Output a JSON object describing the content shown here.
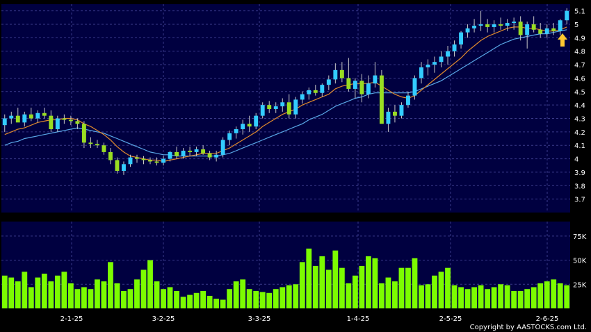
{
  "copyright": "Copyright by AASTOCKS.com Ltd.",
  "colors": {
    "background": "#000040",
    "grid": "#3a3a8a",
    "up_candle": "#33ccff",
    "down_candle": "#99dd22",
    "ma_short": "#e08a2c",
    "ma_long": "#5aa8e8",
    "volume": "#7cfc00",
    "arrow": "#ffc830"
  },
  "chart_data": {
    "type": "candlestick",
    "price_axis": {
      "ylim": [
        3.6,
        5.15
      ],
      "ticks": [
        "3.7",
        "3.8",
        "3.9",
        "4",
        "4.1",
        "4.2",
        "4.3",
        "4.4",
        "4.5",
        "4.6",
        "4.7",
        "4.8",
        "4.9",
        "5",
        "5.1"
      ]
    },
    "volume_axis": {
      "ylim": [
        0,
        90000
      ],
      "ticks": [
        "25K",
        "50K",
        "75K"
      ]
    },
    "x_axis": {
      "labels": [
        "2-1-25",
        "3-2-25",
        "3-3-25",
        "1-4-25",
        "2-5-25",
        "2-6-25"
      ]
    },
    "series": [
      {
        "name": "",
        "values": [
          [
            4.25,
            4.33,
            4.2,
            4.3
          ],
          [
            4.3,
            4.35,
            4.26,
            4.32
          ],
          [
            4.32,
            4.38,
            4.28,
            4.27
          ],
          [
            4.27,
            4.35,
            4.24,
            4.33
          ],
          [
            4.33,
            4.38,
            4.28,
            4.3
          ],
          [
            4.3,
            4.36,
            4.27,
            4.34
          ],
          [
            4.34,
            4.38,
            4.3,
            4.32
          ],
          [
            4.32,
            4.36,
            4.2,
            4.22
          ],
          [
            4.22,
            4.32,
            4.2,
            4.3
          ],
          [
            4.3,
            4.33,
            4.26,
            4.29
          ],
          [
            4.29,
            4.32,
            4.25,
            4.28
          ],
          [
            4.28,
            4.3,
            4.22,
            4.26
          ],
          [
            4.26,
            4.28,
            4.08,
            4.12
          ],
          [
            4.12,
            4.16,
            4.08,
            4.11
          ],
          [
            4.11,
            4.14,
            4.08,
            4.1
          ],
          [
            4.1,
            4.12,
            4.03,
            4.05
          ],
          [
            4.05,
            4.08,
            3.96,
            3.99
          ],
          [
            3.99,
            4.01,
            3.89,
            3.91
          ],
          [
            3.91,
            3.98,
            3.88,
            3.96
          ],
          [
            3.96,
            4.03,
            3.94,
            4.01
          ],
          [
            4.01,
            4.03,
            3.97,
            4.0
          ],
          [
            4.0,
            4.02,
            3.96,
            3.99
          ],
          [
            3.99,
            4.01,
            3.96,
            3.98
          ],
          [
            3.98,
            4.01,
            3.95,
            3.97
          ],
          [
            3.97,
            4.02,
            3.95,
            4.0
          ],
          [
            4.0,
            4.06,
            3.98,
            4.05
          ],
          [
            4.05,
            4.09,
            4.0,
            4.02
          ],
          [
            4.02,
            4.08,
            4.0,
            4.06
          ],
          [
            4.06,
            4.09,
            4.02,
            4.05
          ],
          [
            4.05,
            4.09,
            4.02,
            4.07
          ],
          [
            4.07,
            4.1,
            4.03,
            4.04
          ],
          [
            4.04,
            4.06,
            3.99,
            4.01
          ],
          [
            4.01,
            4.06,
            3.98,
            4.03
          ],
          [
            4.03,
            4.16,
            4.01,
            4.14
          ],
          [
            4.14,
            4.21,
            4.1,
            4.19
          ],
          [
            4.19,
            4.24,
            4.15,
            4.22
          ],
          [
            4.22,
            4.29,
            4.18,
            4.26
          ],
          [
            4.26,
            4.32,
            4.2,
            4.24
          ],
          [
            4.24,
            4.34,
            4.22,
            4.32
          ],
          [
            4.32,
            4.42,
            4.3,
            4.4
          ],
          [
            4.4,
            4.43,
            4.34,
            4.37
          ],
          [
            4.37,
            4.42,
            4.34,
            4.39
          ],
          [
            4.39,
            4.45,
            4.35,
            4.42
          ],
          [
            4.42,
            4.48,
            4.3,
            4.33
          ],
          [
            4.33,
            4.46,
            4.3,
            4.44
          ],
          [
            4.44,
            4.5,
            4.41,
            4.48
          ],
          [
            4.48,
            4.53,
            4.44,
            4.51
          ],
          [
            4.51,
            4.55,
            4.47,
            4.49
          ],
          [
            4.49,
            4.56,
            4.46,
            4.55
          ],
          [
            4.55,
            4.62,
            4.51,
            4.59
          ],
          [
            4.59,
            4.71,
            4.56,
            4.66
          ],
          [
            4.66,
            4.72,
            4.57,
            4.6
          ],
          [
            4.6,
            4.75,
            4.5,
            4.52
          ],
          [
            4.52,
            4.6,
            4.45,
            4.58
          ],
          [
            4.58,
            4.63,
            4.42,
            4.48
          ],
          [
            4.48,
            4.62,
            4.45,
            4.56
          ],
          [
            4.56,
            4.72,
            4.53,
            4.62
          ],
          [
            4.62,
            4.66,
            4.38,
            4.26
          ],
          [
            4.26,
            4.38,
            4.2,
            4.35
          ],
          [
            4.35,
            4.4,
            4.27,
            4.32
          ],
          [
            4.32,
            4.42,
            4.3,
            4.4
          ],
          [
            4.4,
            4.5,
            4.38,
            4.47
          ],
          [
            4.47,
            4.62,
            4.44,
            4.6
          ],
          [
            4.6,
            4.72,
            4.56,
            4.68
          ],
          [
            4.68,
            4.74,
            4.62,
            4.7
          ],
          [
            4.7,
            4.76,
            4.64,
            4.72
          ],
          [
            4.72,
            4.8,
            4.68,
            4.76
          ],
          [
            4.76,
            4.84,
            4.7,
            4.8
          ],
          [
            4.8,
            4.88,
            4.76,
            4.85
          ],
          [
            4.85,
            4.95,
            4.82,
            4.94
          ],
          [
            4.94,
            5.0,
            4.9,
            4.97
          ],
          [
            4.97,
            5.04,
            4.94,
            4.99
          ],
          [
            4.99,
            5.1,
            4.95,
            5.0
          ],
          [
            5.0,
            5.04,
            4.94,
            4.98
          ],
          [
            4.98,
            5.03,
            4.94,
            5.0
          ],
          [
            5.0,
            5.05,
            4.96,
            4.99
          ],
          [
            4.99,
            5.04,
            4.95,
            5.01
          ],
          [
            5.01,
            5.05,
            4.96,
            5.02
          ],
          [
            5.02,
            5.06,
            4.88,
            4.92
          ],
          [
            4.92,
            5.02,
            4.82,
            5.0
          ],
          [
            5.0,
            5.06,
            4.94,
            4.96
          ],
          [
            4.96,
            5.01,
            4.9,
            4.93
          ],
          [
            4.93,
            5.0,
            4.9,
            4.97
          ],
          [
            4.97,
            5.01,
            4.92,
            4.95
          ],
          [
            4.95,
            5.04,
            4.92,
            5.03
          ],
          [
            5.03,
            5.12,
            5.0,
            5.1
          ]
        ]
      },
      {
        "name": "",
        "values": [
          4.18,
          4.2,
          4.22,
          4.23,
          4.25,
          4.27,
          4.28,
          4.29,
          4.29,
          4.3,
          4.3,
          4.29,
          4.26,
          4.24,
          4.21,
          4.18,
          4.14,
          4.09,
          4.05,
          4.02,
          4.01,
          4.0,
          3.99,
          3.99,
          3.98,
          3.99,
          4.0,
          4.01,
          4.02,
          4.03,
          4.04,
          4.04,
          4.04,
          4.06,
          4.08,
          4.11,
          4.14,
          4.17,
          4.2,
          4.24,
          4.27,
          4.3,
          4.33,
          4.35,
          4.37,
          4.4,
          4.42,
          4.44,
          4.46,
          4.48,
          4.52,
          4.54,
          4.55,
          4.56,
          4.56,
          4.56,
          4.57,
          4.54,
          4.51,
          4.48,
          4.46,
          4.45,
          4.47,
          4.51,
          4.55,
          4.59,
          4.63,
          4.67,
          4.71,
          4.75,
          4.8,
          4.84,
          4.88,
          4.91,
          4.93,
          4.95,
          4.97,
          4.98,
          4.98,
          4.97,
          4.97,
          4.96,
          4.95,
          4.95,
          4.96,
          4.98
        ]
      },
      {
        "name": "",
        "values": [
          4.1,
          4.12,
          4.13,
          4.15,
          4.16,
          4.17,
          4.18,
          4.19,
          4.2,
          4.21,
          4.22,
          4.23,
          4.22,
          4.21,
          4.2,
          4.19,
          4.17,
          4.15,
          4.13,
          4.11,
          4.09,
          4.07,
          4.05,
          4.04,
          4.03,
          4.03,
          4.02,
          4.02,
          4.02,
          4.02,
          4.02,
          4.02,
          4.02,
          4.03,
          4.04,
          4.06,
          4.08,
          4.1,
          4.12,
          4.14,
          4.16,
          4.18,
          4.2,
          4.22,
          4.24,
          4.26,
          4.29,
          4.31,
          4.33,
          4.36,
          4.39,
          4.41,
          4.43,
          4.45,
          4.46,
          4.48,
          4.49,
          4.49,
          4.49,
          4.49,
          4.49,
          4.49,
          4.5,
          4.52,
          4.54,
          4.56,
          4.58,
          4.61,
          4.64,
          4.67,
          4.7,
          4.73,
          4.76,
          4.79,
          4.82,
          4.85,
          4.87,
          4.89,
          4.9,
          4.91,
          4.92,
          4.93,
          4.93,
          4.94,
          4.95,
          4.96
        ]
      },
      {
        "name": "",
        "values": [
          34000,
          32000,
          28000,
          38000,
          22000,
          32000,
          36000,
          28000,
          34000,
          38000,
          26000,
          20000,
          22000,
          20000,
          30000,
          28000,
          48000,
          26000,
          18000,
          20000,
          30000,
          40000,
          50000,
          28000,
          20000,
          22000,
          18000,
          12000,
          14000,
          16000,
          18000,
          13000,
          10000,
          9000,
          20000,
          28000,
          30000,
          20000,
          18000,
          17000,
          16000,
          20000,
          22000,
          24000,
          25000,
          48000,
          62000,
          44000,
          54000,
          40000,
          60000,
          42000,
          26000,
          34000,
          44000,
          54000,
          52000,
          26000,
          32000,
          28000,
          42000,
          42000,
          52000,
          24000,
          25000,
          34000,
          38000,
          42000,
          24000,
          22000,
          20000,
          22000,
          24000,
          20000,
          22000,
          25000,
          24000,
          18000,
          18000,
          20000,
          22000,
          26000,
          28000,
          30000,
          26000,
          24000
        ]
      }
    ],
    "marker": "arrow-up"
  }
}
